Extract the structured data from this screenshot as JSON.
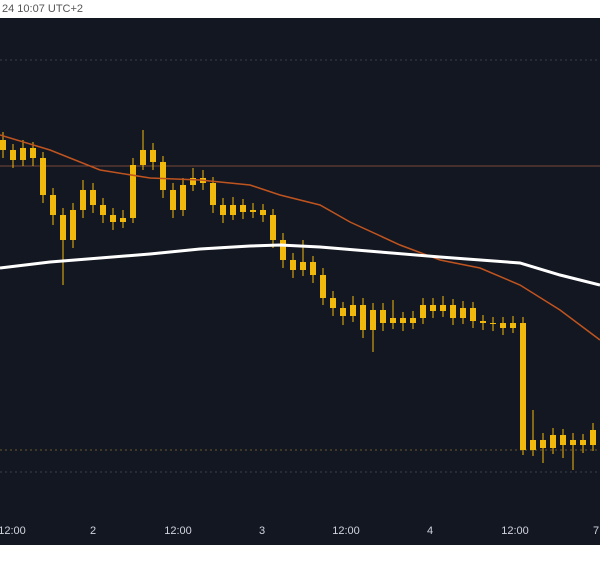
{
  "chart_data": {
    "type": "candlestick",
    "header": "24 10:07 UTC+2",
    "color": "#f0b90b",
    "xlim": [
      -0.3,
      59.7
    ],
    "ylim": [
      0,
      100
    ],
    "xticks": [
      {
        "value": 0.9,
        "label": "12:00"
      },
      {
        "value": 9,
        "label": "2"
      },
      {
        "value": 17.5,
        "label": "12:00"
      },
      {
        "value": 25.9,
        "label": "3"
      },
      {
        "value": 34.3,
        "label": "12:00"
      },
      {
        "value": 42.7,
        "label": "4"
      },
      {
        "value": 51.2,
        "label": "12:00"
      },
      {
        "value": 59.3,
        "label": "7"
      }
    ],
    "ohlc": [
      [
        75.6,
        77.2,
        72.0,
        73.6
      ],
      [
        73.6,
        74.8,
        70.0,
        71.6
      ],
      [
        71.6,
        75.6,
        70.4,
        74.0
      ],
      [
        74.0,
        75.2,
        70.4,
        72.0
      ],
      [
        72.0,
        73.2,
        63.0,
        64.6
      ],
      [
        64.6,
        66.0,
        58.6,
        60.6
      ],
      [
        60.6,
        62.0,
        46.6,
        55.6
      ],
      [
        55.6,
        63.0,
        54.0,
        61.6
      ],
      [
        61.6,
        67.6,
        60.0,
        65.6
      ],
      [
        65.6,
        67.0,
        61.0,
        62.6
      ],
      [
        62.6,
        64.0,
        59.0,
        60.6
      ],
      [
        60.6,
        62.0,
        57.6,
        59.2
      ],
      [
        59.2,
        61.6,
        58.0,
        60.0
      ],
      [
        60.0,
        72.0,
        59.0,
        70.6
      ],
      [
        70.6,
        77.6,
        69.6,
        73.6
      ],
      [
        73.6,
        75.0,
        69.6,
        71.2
      ],
      [
        71.2,
        72.4,
        64.0,
        65.6
      ],
      [
        65.6,
        67.0,
        60.0,
        61.6
      ],
      [
        61.6,
        68.0,
        60.4,
        66.6
      ],
      [
        66.6,
        70.0,
        65.4,
        68.0
      ],
      [
        68.0,
        69.6,
        65.6,
        67.0
      ],
      [
        67.0,
        68.2,
        61.0,
        62.6
      ],
      [
        62.6,
        64.0,
        59.0,
        60.6
      ],
      [
        60.6,
        64.2,
        59.6,
        62.6
      ],
      [
        62.6,
        63.8,
        59.8,
        61.2
      ],
      [
        61.2,
        63.0,
        60.0,
        61.6
      ],
      [
        61.6,
        62.8,
        59.2,
        60.6
      ],
      [
        60.6,
        61.8,
        54.0,
        55.6
      ],
      [
        55.6,
        57.0,
        50.0,
        51.6
      ],
      [
        51.6,
        53.0,
        48.0,
        49.6
      ],
      [
        49.6,
        55.6,
        48.4,
        51.2
      ],
      [
        51.2,
        52.4,
        47.0,
        48.6
      ],
      [
        48.6,
        50.0,
        42.6,
        44.0
      ],
      [
        44.0,
        45.4,
        40.4,
        42.0
      ],
      [
        42.0,
        43.2,
        38.6,
        40.4
      ],
      [
        40.4,
        44.4,
        39.2,
        42.6
      ],
      [
        42.6,
        44.0,
        36.0,
        37.6
      ],
      [
        37.6,
        43.0,
        33.2,
        41.6
      ],
      [
        41.6,
        43.0,
        37.4,
        39.0
      ],
      [
        39.0,
        43.6,
        37.8,
        40.0
      ],
      [
        40.0,
        41.2,
        37.4,
        39.0
      ],
      [
        39.0,
        41.4,
        37.8,
        40.0
      ],
      [
        40.0,
        44.0,
        38.8,
        42.6
      ],
      [
        42.6,
        44.0,
        40.0,
        41.4
      ],
      [
        41.4,
        44.4,
        40.2,
        42.6
      ],
      [
        42.6,
        43.8,
        38.6,
        40.0
      ],
      [
        40.0,
        43.4,
        38.8,
        42.0
      ],
      [
        42.0,
        43.2,
        38.0,
        39.4
      ],
      [
        39.4,
        40.6,
        37.6,
        39.0
      ],
      [
        39.0,
        40.2,
        37.4,
        39.0
      ],
      [
        39.0,
        40.2,
        36.6,
        38.0
      ],
      [
        38.0,
        40.4,
        37.0,
        39.0
      ],
      [
        39.0,
        40.2,
        12.6,
        13.6
      ],
      [
        13.6,
        21.6,
        12.4,
        15.6
      ],
      [
        15.6,
        17.0,
        11.0,
        14.0
      ],
      [
        14.0,
        18.0,
        12.8,
        16.6
      ],
      [
        16.6,
        17.8,
        12.0,
        14.6
      ],
      [
        14.6,
        17.0,
        9.6,
        15.6
      ],
      [
        15.6,
        16.8,
        13.0,
        14.6
      ],
      [
        14.6,
        19.0,
        13.4,
        17.6
      ]
    ],
    "overlays": [
      {
        "color": "#c0541f",
        "width": 1.5,
        "x": [
          -0.3,
          4.7,
          9.7,
          14.7,
          19.7,
          24.7,
          27.7,
          31.7,
          34.7,
          39.7,
          43.7,
          47.7,
          51.7,
          55.7,
          59.7
        ],
        "values": [
          76.6,
          73.6,
          69.6,
          68.0,
          67.6,
          66.6,
          64.6,
          62.6,
          59.2,
          54.6,
          51.6,
          50.0,
          46.6,
          41.6,
          35.6
        ]
      },
      {
        "color": "#ffffff",
        "width": 3,
        "x": [
          -0.3,
          4.7,
          9.7,
          14.7,
          19.7,
          24.7,
          27.7,
          31.7,
          37.7,
          43.7,
          51.7,
          55.7,
          59.7
        ],
        "values": [
          50.0,
          51.2,
          52.0,
          52.8,
          53.8,
          54.4,
          54.6,
          54.2,
          53.2,
          52.2,
          51.0,
          48.6,
          46.6
        ]
      }
    ],
    "levels": [
      {
        "value": 91.6,
        "color": "#3a3f4b",
        "dashed": true
      },
      {
        "value": 70.4,
        "color": "#7a4a3a",
        "dashed": false
      },
      {
        "value": 13.6,
        "color": "#6b5a2a",
        "dashed": true
      },
      {
        "value": 9.2,
        "color": "#3a3f4b",
        "dashed": true
      }
    ]
  }
}
